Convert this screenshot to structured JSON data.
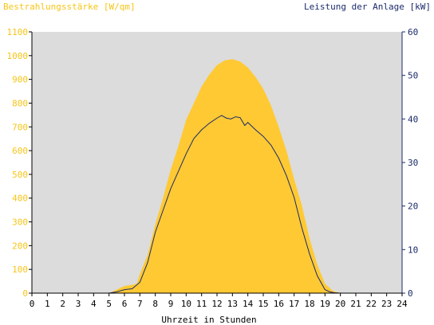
{
  "chart_data": {
    "type": "area",
    "title_left": "Bestrahlungsstärke [W/qm]",
    "title_right": "Leistung der Anlage [kW]",
    "xlabel": "Uhrzeit in Stunden",
    "xlim": [
      0,
      24
    ],
    "x_ticks": [
      "0",
      "1",
      "2",
      "3",
      "4",
      "5",
      "6",
      "7",
      "8",
      "9",
      "10",
      "11",
      "12",
      "13",
      "14",
      "15",
      "16",
      "17",
      "18",
      "19",
      "20",
      "21",
      "22",
      "23",
      "24"
    ],
    "y_left_lim": [
      0,
      1100
    ],
    "y_left_ticks": [
      "0",
      "100",
      "200",
      "300",
      "400",
      "500",
      "600",
      "700",
      "800",
      "900",
      "1000",
      "1100"
    ],
    "y_right_lim": [
      0,
      60
    ],
    "y_right_ticks": [
      "0",
      "10",
      "20",
      "30",
      "40",
      "50",
      "60"
    ],
    "grid": false,
    "colors": {
      "irradiance": "#ffc933",
      "power": "#1b2a6b",
      "plot_bg": "#dcdcdc",
      "left_axis_text": "#f5c518",
      "right_axis_text": "#1b2a6b"
    },
    "series": [
      {
        "name": "Bestrahlungsstärke",
        "axis": "left",
        "style": "area",
        "x": [
          0,
          5,
          5.5,
          6,
          6.5,
          6.8,
          7,
          7.5,
          8,
          8.5,
          9,
          9.5,
          10,
          10.5,
          11,
          11.5,
          12,
          12.5,
          13,
          13.5,
          14,
          14.5,
          15,
          15.5,
          16,
          16.5,
          17,
          17.5,
          18,
          18.5,
          19,
          19.5,
          20,
          24
        ],
        "y": [
          0,
          0,
          15,
          30,
          35,
          40,
          80,
          160,
          290,
          400,
          520,
          620,
          730,
          800,
          870,
          920,
          960,
          980,
          985,
          975,
          950,
          910,
          860,
          790,
          700,
          600,
          480,
          370,
          230,
          120,
          40,
          10,
          0,
          0
        ]
      },
      {
        "name": "Leistung der Anlage",
        "axis": "right",
        "style": "line",
        "x": [
          0,
          5,
          5.5,
          6,
          6.5,
          7,
          7.5,
          8,
          8.5,
          9,
          9.5,
          10,
          10.5,
          11,
          11.5,
          12,
          12.3,
          12.6,
          12.9,
          13.2,
          13.5,
          13.8,
          14,
          14.5,
          15,
          15.5,
          16,
          16.5,
          17,
          17.5,
          18,
          18.5,
          19,
          19.3,
          19.6,
          20,
          24
        ],
        "y": [
          0,
          0,
          0.3,
          0.8,
          1,
          2.5,
          7,
          14,
          19,
          24,
          28,
          32,
          35.5,
          37.5,
          39,
          40.2,
          40.8,
          40.2,
          40,
          40.5,
          40.3,
          38.5,
          39.2,
          37.5,
          36,
          34,
          31,
          27,
          22,
          15,
          9,
          4,
          0.8,
          0.3,
          0.1,
          0,
          0
        ]
      }
    ]
  }
}
